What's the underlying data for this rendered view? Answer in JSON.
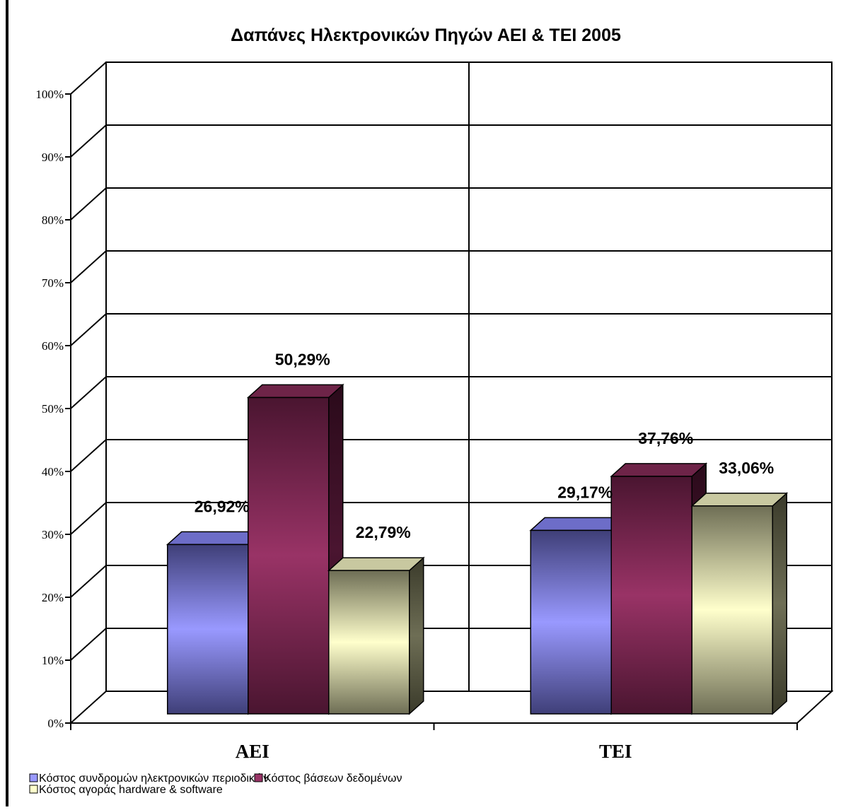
{
  "colors": {
    "series": [
      "#9999ff",
      "#993366",
      "#ffffcc"
    ],
    "series_dark": [
      "#3f3f78",
      "#4a1530",
      "#6e6e55"
    ],
    "series_top": [
      "#6d6dc8",
      "#6e2448",
      "#c8c8a0"
    ],
    "series_side": [
      "#1c1c40",
      "#2a0a1a",
      "#3a3a2a"
    ],
    "grid": "#000000",
    "background": "#ffffff"
  },
  "chart_data": {
    "type": "bar",
    "title": "Δαπάνες Ηλεκτρονικών Πηγών ΑΕΙ & ΤΕΙ 2005",
    "categories": [
      "ΑΕΙ",
      "ΤΕΙ"
    ],
    "series": [
      {
        "name": "Κόστος συνδρομών ηλεκτρονικών περιοδικών",
        "values": [
          26.92,
          29.17
        ],
        "labels": [
          "26,92%",
          "29,17%"
        ]
      },
      {
        "name": "Κόστος βάσεων δεδομένων",
        "values": [
          50.29,
          37.76
        ],
        "labels": [
          "50,29%",
          "37,76%"
        ]
      },
      {
        "name": "Κόστος αγοράς hardware & software",
        "values": [
          22.79,
          33.06
        ],
        "labels": [
          "22,79%",
          "33,06%"
        ]
      }
    ],
    "y_ticks": [
      "0%",
      "10%",
      "20%",
      "30%",
      "40%",
      "50%",
      "60%",
      "70%",
      "80%",
      "90%",
      "100%"
    ],
    "ylim": [
      0,
      100
    ],
    "grid": true,
    "legend_position": "bottom-left",
    "three_d": true
  }
}
